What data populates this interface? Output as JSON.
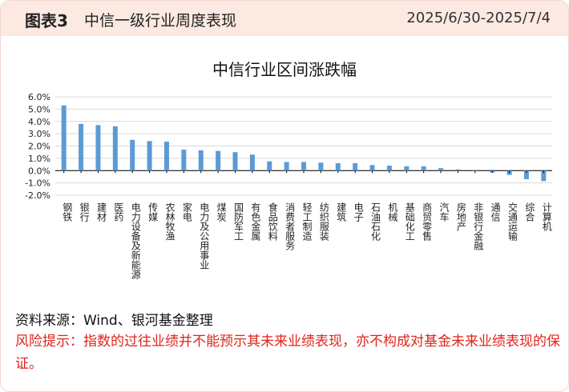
{
  "header": {
    "figure_label": "图表3",
    "figure_title": "中信一级行业周度表现",
    "date_range": "2025/6/30-2025/7/4"
  },
  "chart_data": {
    "type": "bar",
    "title": "中信行业区间涨跌幅",
    "xlabel": "",
    "ylabel": "",
    "ylim": [
      -2.0,
      6.0
    ],
    "yticks": [
      "6.0%",
      "5.0%",
      "4.0%",
      "3.0%",
      "2.0%",
      "1.0%",
      "0.0%",
      "-1.0%",
      "-2.0%"
    ],
    "grid": true,
    "bar_color": "#5b9bd5",
    "categories": [
      "钢铁",
      "银行",
      "建材",
      "医药",
      "电力设备及新能源",
      "传媒",
      "农林牧渔",
      "家电",
      "电力及公用事业",
      "煤炭",
      "国防军工",
      "有色金属",
      "食品饮料",
      "消费者服务",
      "轻工制造",
      "纺织服装",
      "建筑",
      "电子",
      "石油石化",
      "机械",
      "基础化工",
      "商贸零售",
      "汽车",
      "房地产",
      "非银行金融",
      "通信",
      "交通运输",
      "综合",
      "计算机"
    ],
    "values": [
      5.3,
      3.8,
      3.7,
      3.6,
      2.5,
      2.4,
      2.35,
      1.7,
      1.65,
      1.6,
      1.5,
      1.3,
      0.75,
      0.7,
      0.7,
      0.65,
      0.6,
      0.6,
      0.45,
      0.4,
      0.35,
      0.35,
      0.2,
      0.1,
      -0.05,
      -0.15,
      -0.35,
      -0.7,
      -0.85
    ]
  },
  "footer": {
    "source": "资料来源：Wind、银河基金整理",
    "risk": "风险提示：指数的过往业绩并不能预示其未来业绩表现，亦不构成对基金未来业绩表现的保证。"
  }
}
